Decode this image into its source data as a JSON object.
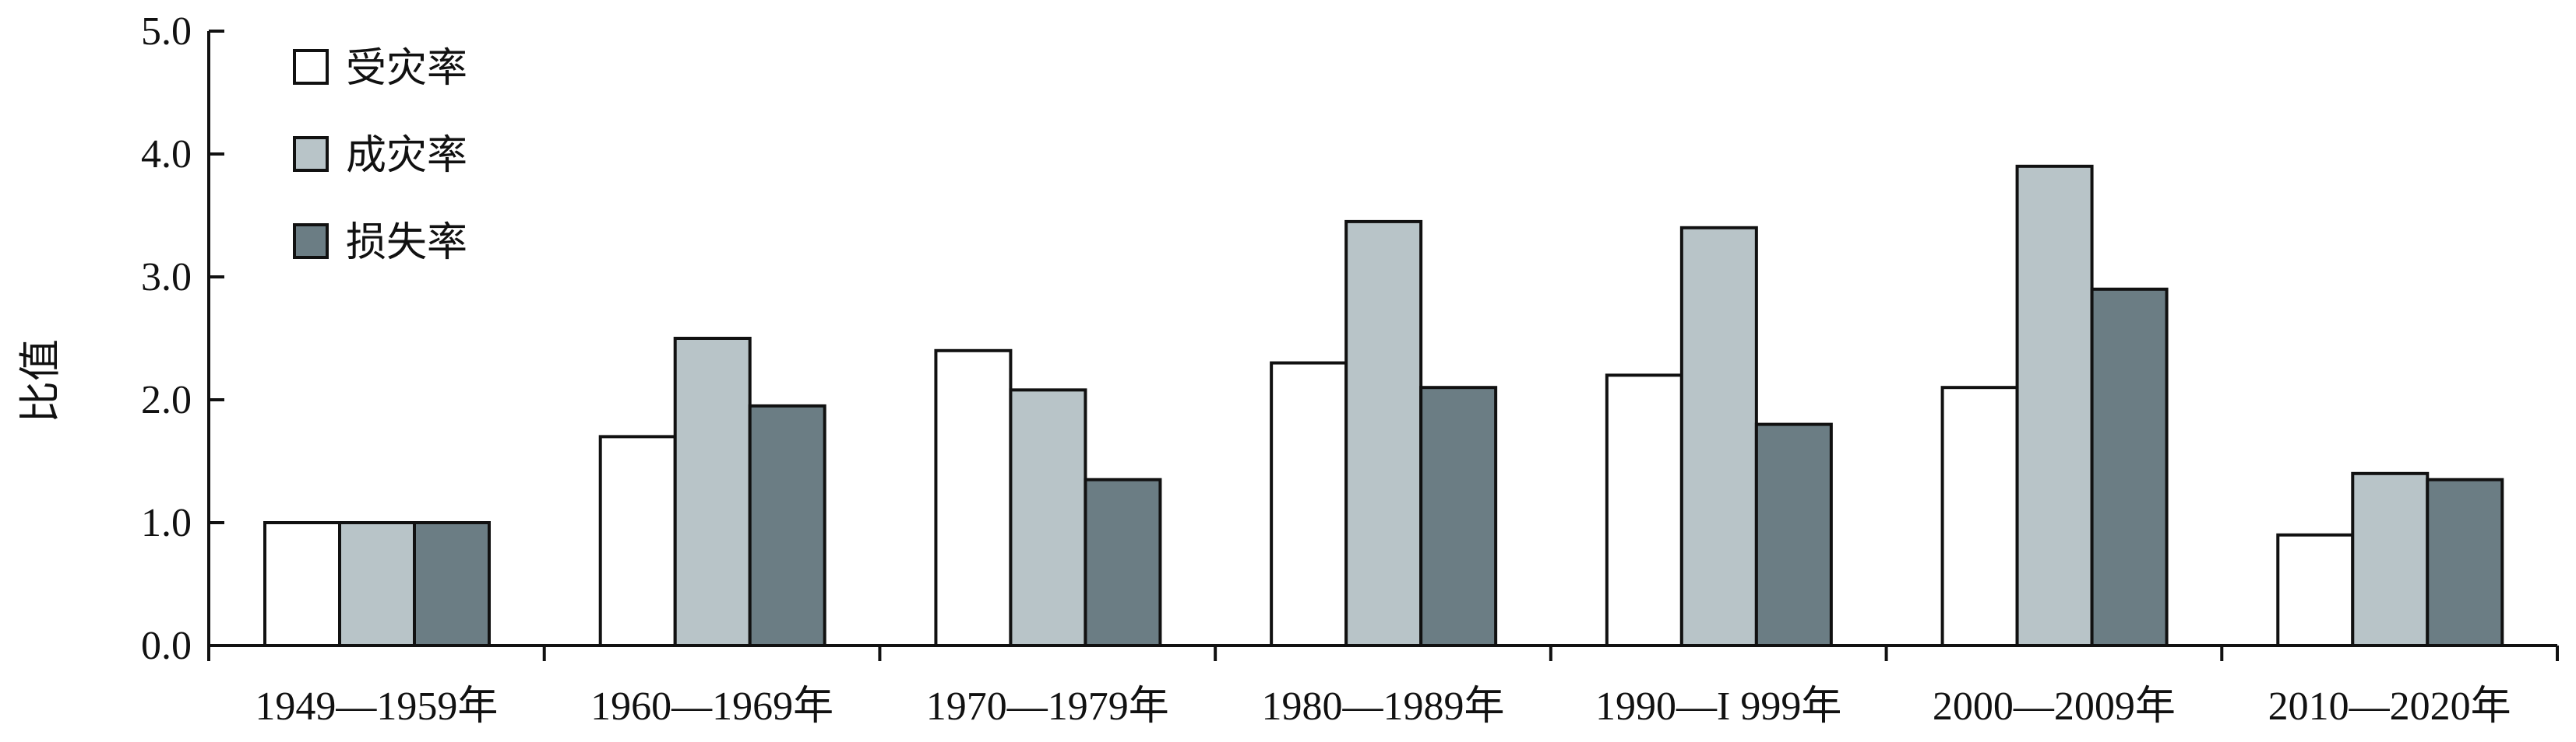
{
  "chart_data": {
    "type": "bar",
    "title": "",
    "xlabel": "",
    "ylabel": "比值",
    "ylim": [
      0,
      5
    ],
    "yticks": [
      "0.0",
      "1.0",
      "2.0",
      "3.0",
      "4.0",
      "5.0"
    ],
    "grid": false,
    "legend_position": "top-left",
    "categories": [
      "1949—1959年",
      "1960—1969年",
      "1970—1979年",
      "1980—1989年",
      "1990—I 999年",
      "2000—2009年",
      "2010—2020年"
    ],
    "series": [
      {
        "name": "受灾率",
        "color": "#ffffff",
        "values": [
          1.0,
          1.7,
          2.4,
          2.3,
          2.2,
          2.1,
          0.9
        ]
      },
      {
        "name": "成灾率",
        "color": "#b8c4c8",
        "values": [
          1.0,
          2.5,
          2.08,
          3.45,
          3.4,
          3.9,
          1.4
        ]
      },
      {
        "name": "损失率",
        "color": "#6b7d84",
        "values": [
          1.0,
          1.95,
          1.35,
          2.1,
          1.8,
          2.9,
          1.35
        ]
      }
    ]
  }
}
